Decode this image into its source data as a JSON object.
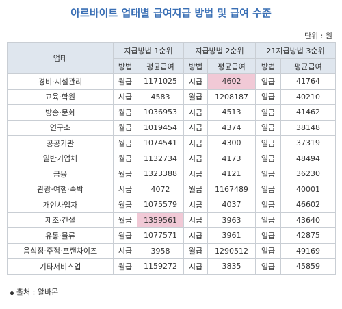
{
  "title": "아르바이트 업태별 급여지급 방법 및 급여 수준",
  "unit": "단위 : 원",
  "source": {
    "icon": "diamond-icon",
    "text": "출처 : 알바몬"
  },
  "colors": {
    "title": "#3a6fb5",
    "header_bg": "#dfe6ee",
    "highlight": "#f1c9d6",
    "border": "#c9ced4"
  },
  "table": {
    "header_industry": "업태",
    "groups": [
      "지급방법 1순위",
      "지급방법 2순위",
      "21지급방법 3순위"
    ],
    "sub": [
      "방법",
      "평균급여"
    ],
    "rows": [
      {
        "name": "경비·시설관리",
        "m1": "월급",
        "p1": "1171025",
        "m2": "시급",
        "p2": "4602",
        "m3": "일급",
        "p3": "41764"
      },
      {
        "name": "교육·학원",
        "m1": "시급",
        "p1": "4583",
        "m2": "월급",
        "p2": "1208187",
        "m3": "일급",
        "p3": "40210"
      },
      {
        "name": "방송·문화",
        "m1": "월급",
        "p1": "1036953",
        "m2": "시급",
        "p2": "4513",
        "m3": "일급",
        "p3": "41462"
      },
      {
        "name": "연구소",
        "m1": "월급",
        "p1": "1019454",
        "m2": "시급",
        "p2": "4374",
        "m3": "일급",
        "p3": "38148"
      },
      {
        "name": "공공기관",
        "m1": "월급",
        "p1": "1074541",
        "m2": "시급",
        "p2": "4300",
        "m3": "일급",
        "p3": "37319"
      },
      {
        "name": "일반기업체",
        "m1": "월급",
        "p1": "1132734",
        "m2": "시급",
        "p2": "4173",
        "m3": "일급",
        "p3": "48494"
      },
      {
        "name": "금융",
        "m1": "월급",
        "p1": "1323388",
        "m2": "시급",
        "p2": "4121",
        "m3": "일급",
        "p3": "36230"
      },
      {
        "name": "관광·여행·숙박",
        "m1": "시급",
        "p1": "4072",
        "m2": "월급",
        "p2": "1167489",
        "m3": "일급",
        "p3": "40001"
      },
      {
        "name": "개인사업자",
        "m1": "월급",
        "p1": "1075579",
        "m2": "시급",
        "p2": "4037",
        "m3": "일급",
        "p3": "46602"
      },
      {
        "name": "제조·건설",
        "m1": "월급",
        "p1": "1359561",
        "m2": "시급",
        "p2": "3963",
        "m3": "일급",
        "p3": "43640"
      },
      {
        "name": "유통·물류",
        "m1": "월급",
        "p1": "1077571",
        "m2": "시급",
        "p2": "3961",
        "m3": "일급",
        "p3": "42875"
      },
      {
        "name": "음식점·주점·프랜차이즈",
        "m1": "시급",
        "p1": "3958",
        "m2": "월급",
        "p2": "1290512",
        "m3": "일급",
        "p3": "49169"
      },
      {
        "name": "기타서비스업",
        "m1": "월급",
        "p1": "1159272",
        "m2": "시급",
        "p2": "3835",
        "m3": "일급",
        "p3": "45859"
      }
    ]
  }
}
